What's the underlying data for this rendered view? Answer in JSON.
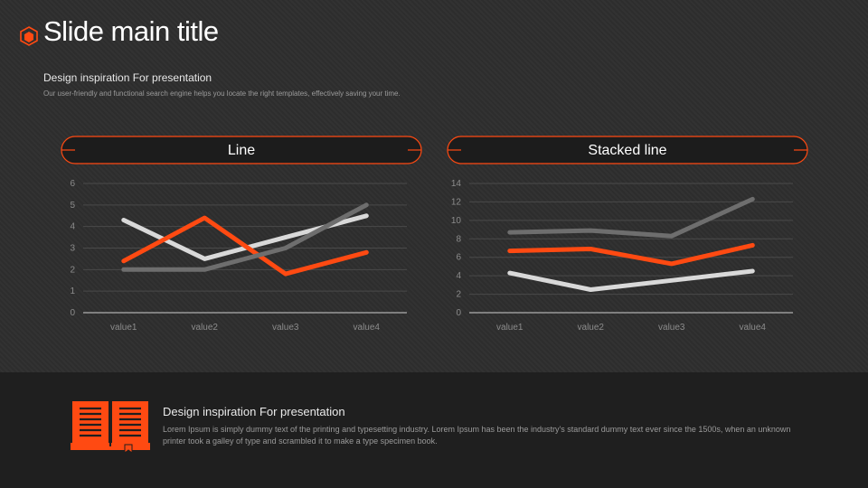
{
  "header": {
    "title": "Slide main title",
    "subtitle": "Design inspiration For presentation",
    "description": "Our user-friendly and functional search engine helps you locate the right templates, effectively saving your time."
  },
  "colors": {
    "accent": "#ff4a12",
    "series_light": "#d9d9d9",
    "series_gray": "#6e6e6e",
    "grid": "#4a4a4a",
    "axis": "#cfcfcf",
    "tick": "#8c8c8c"
  },
  "footer": {
    "title": "Design inspiration For presentation",
    "text": "Lorem Ipsum is simply dummy text of the printing and typesetting industry. Lorem Ipsum has been the industry's standard dummy text ever since the 1500s, when an unknown printer took a galley of type and scrambled it to make a type specimen book.",
    "icon": "book-icon"
  },
  "chart_data": [
    {
      "type": "line",
      "title": "Line",
      "categories": [
        "value1",
        "value2",
        "value3",
        "value4"
      ],
      "ylim": [
        0,
        6
      ],
      "yticks": [
        0,
        1,
        2,
        3,
        4,
        5,
        6
      ],
      "grid": true,
      "series": [
        {
          "values": [
            4.3,
            2.5,
            3.5,
            4.5
          ],
          "color": "#d9d9d9"
        },
        {
          "values": [
            2.4,
            4.4,
            1.8,
            2.8
          ],
          "color": "#ff4a12"
        },
        {
          "values": [
            2.0,
            2.0,
            3.0,
            5.0
          ],
          "color": "#6e6e6e"
        }
      ]
    },
    {
      "type": "line",
      "title": "Stacked line",
      "categories": [
        "value1",
        "value2",
        "value3",
        "value4"
      ],
      "ylim": [
        0,
        14
      ],
      "yticks": [
        0,
        2,
        4,
        6,
        8,
        10,
        12,
        14
      ],
      "grid": true,
      "series": [
        {
          "values": [
            4.3,
            2.5,
            3.5,
            4.5
          ],
          "color": "#d9d9d9"
        },
        {
          "values": [
            6.7,
            6.9,
            5.3,
            7.3
          ],
          "color": "#ff4a12"
        },
        {
          "values": [
            8.7,
            8.9,
            8.3,
            12.3
          ],
          "color": "#6e6e6e"
        }
      ]
    }
  ]
}
